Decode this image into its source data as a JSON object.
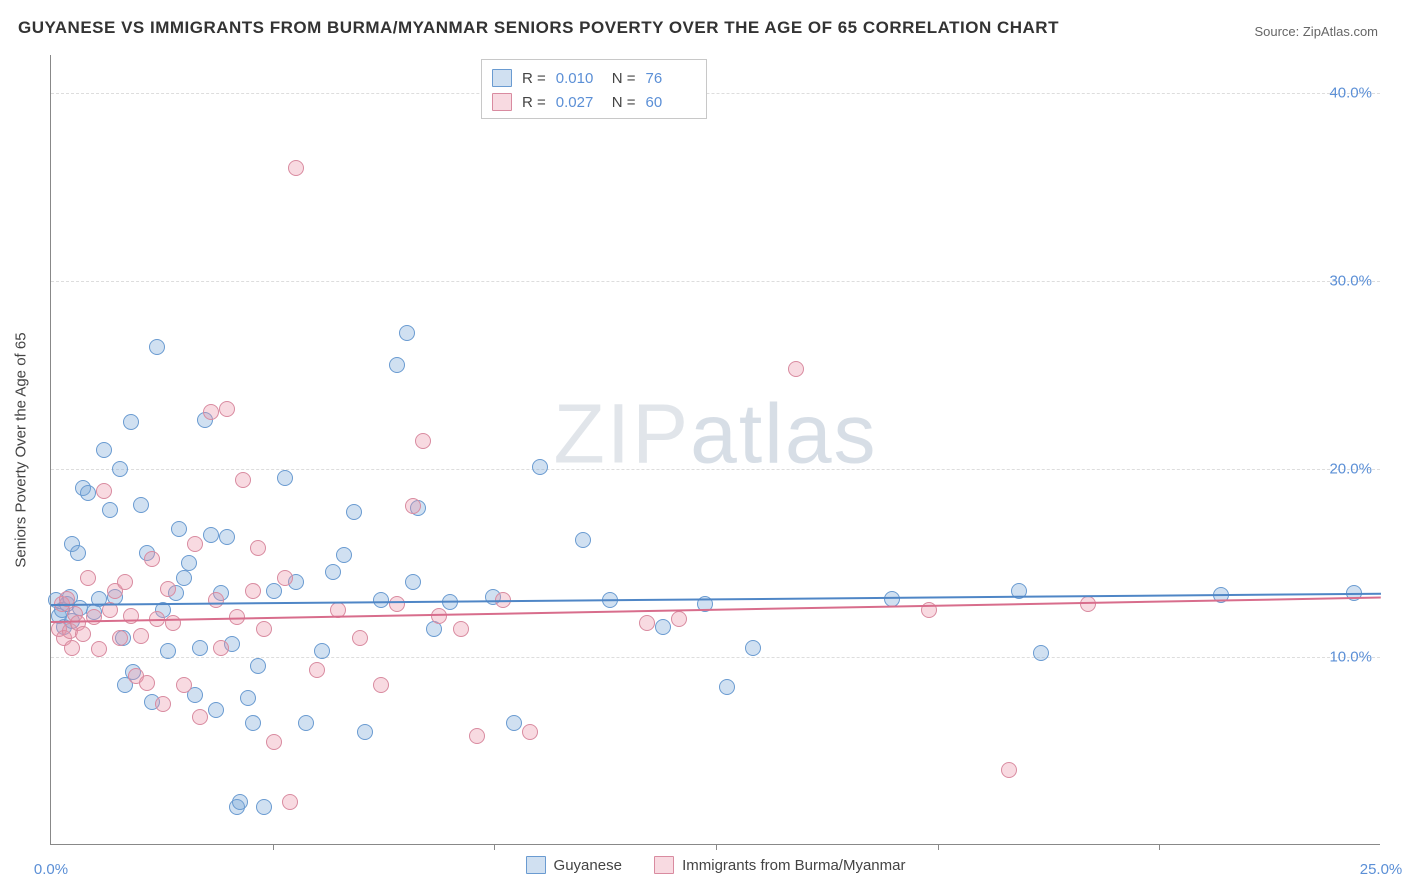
{
  "title": "GUYANESE VS IMMIGRANTS FROM BURMA/MYANMAR SENIORS POVERTY OVER THE AGE OF 65 CORRELATION CHART",
  "source": "Source: ZipAtlas.com",
  "watermark": "ZIPatlas",
  "ylabel": "Seniors Poverty Over the Age of 65",
  "chart": {
    "type": "scatter",
    "xlim": [
      0,
      25
    ],
    "ylim": [
      0,
      42
    ],
    "x_ticks": [
      0.0,
      25.0
    ],
    "x_tick_labels": [
      "0.0%",
      "25.0%"
    ],
    "x_minor_ticks": [
      4.17,
      8.33,
      12.5,
      16.67,
      20.83
    ],
    "y_ticks": [
      10.0,
      20.0,
      30.0,
      40.0
    ],
    "y_tick_labels": [
      "10.0%",
      "20.0%",
      "30.0%",
      "40.0%"
    ],
    "grid_color": "#dddddd",
    "background": "#ffffff",
    "axis_color": "#888888",
    "tick_color": "#5b8fd6",
    "series": [
      {
        "name": "Guyanese",
        "fill": "rgba(120,165,216,0.35)",
        "stroke": "#6a9bd1",
        "R": "0.010",
        "N": "76",
        "trend": {
          "y0": 12.8,
          "y1": 13.4,
          "color": "#4f86c6"
        },
        "points": [
          [
            0.1,
            13.0
          ],
          [
            0.15,
            12.2
          ],
          [
            0.2,
            12.5
          ],
          [
            0.25,
            11.6
          ],
          [
            0.3,
            12.8
          ],
          [
            0.35,
            13.2
          ],
          [
            0.4,
            11.9
          ],
          [
            0.4,
            16.0
          ],
          [
            0.5,
            15.5
          ],
          [
            0.55,
            12.6
          ],
          [
            0.6,
            19.0
          ],
          [
            0.7,
            18.7
          ],
          [
            0.8,
            12.4
          ],
          [
            0.9,
            13.1
          ],
          [
            1.0,
            21.0
          ],
          [
            1.1,
            17.8
          ],
          [
            1.2,
            13.2
          ],
          [
            1.3,
            20.0
          ],
          [
            1.35,
            11.0
          ],
          [
            1.4,
            8.5
          ],
          [
            1.5,
            22.5
          ],
          [
            1.55,
            9.2
          ],
          [
            1.7,
            18.1
          ],
          [
            1.8,
            15.5
          ],
          [
            1.9,
            7.6
          ],
          [
            2.0,
            26.5
          ],
          [
            2.1,
            12.5
          ],
          [
            2.2,
            10.3
          ],
          [
            2.35,
            13.4
          ],
          [
            2.4,
            16.8
          ],
          [
            2.5,
            14.2
          ],
          [
            2.6,
            15.0
          ],
          [
            2.7,
            8.0
          ],
          [
            2.8,
            10.5
          ],
          [
            2.9,
            22.6
          ],
          [
            3.0,
            16.5
          ],
          [
            3.1,
            7.2
          ],
          [
            3.2,
            13.4
          ],
          [
            3.3,
            16.4
          ],
          [
            3.4,
            10.7
          ],
          [
            3.5,
            2.0
          ],
          [
            3.55,
            2.3
          ],
          [
            3.7,
            7.8
          ],
          [
            3.8,
            6.5
          ],
          [
            3.9,
            9.5
          ],
          [
            4.0,
            2.0
          ],
          [
            4.2,
            13.5
          ],
          [
            4.4,
            19.5
          ],
          [
            4.6,
            14.0
          ],
          [
            4.8,
            6.5
          ],
          [
            5.1,
            10.3
          ],
          [
            5.3,
            14.5
          ],
          [
            5.5,
            15.4
          ],
          [
            5.7,
            17.7
          ],
          [
            5.9,
            6.0
          ],
          [
            6.2,
            13.0
          ],
          [
            6.5,
            25.5
          ],
          [
            6.7,
            27.2
          ],
          [
            6.8,
            14.0
          ],
          [
            6.9,
            17.9
          ],
          [
            7.2,
            11.5
          ],
          [
            7.5,
            12.9
          ],
          [
            8.3,
            13.2
          ],
          [
            8.7,
            6.5
          ],
          [
            9.2,
            20.1
          ],
          [
            10.0,
            16.2
          ],
          [
            10.5,
            13.0
          ],
          [
            11.5,
            11.6
          ],
          [
            12.3,
            12.8
          ],
          [
            12.7,
            8.4
          ],
          [
            13.2,
            10.5
          ],
          [
            15.8,
            13.1
          ],
          [
            18.2,
            13.5
          ],
          [
            18.6,
            10.2
          ],
          [
            22.0,
            13.3
          ],
          [
            24.5,
            13.4
          ]
        ]
      },
      {
        "name": "Immigrants from Burma/Myanmar",
        "fill": "rgba(235,150,170,0.35)",
        "stroke": "#d98ba0",
        "R": "0.027",
        "N": "60",
        "trend": {
          "y0": 11.9,
          "y1": 13.2,
          "color": "#d86d8c"
        },
        "points": [
          [
            0.15,
            11.5
          ],
          [
            0.2,
            12.8
          ],
          [
            0.25,
            11.0
          ],
          [
            0.3,
            13.1
          ],
          [
            0.35,
            11.4
          ],
          [
            0.4,
            10.5
          ],
          [
            0.45,
            12.3
          ],
          [
            0.5,
            11.8
          ],
          [
            0.6,
            11.2
          ],
          [
            0.7,
            14.2
          ],
          [
            0.8,
            12.1
          ],
          [
            0.9,
            10.4
          ],
          [
            1.0,
            18.8
          ],
          [
            1.1,
            12.5
          ],
          [
            1.2,
            13.5
          ],
          [
            1.3,
            11.0
          ],
          [
            1.4,
            14.0
          ],
          [
            1.5,
            12.2
          ],
          [
            1.6,
            9.0
          ],
          [
            1.7,
            11.1
          ],
          [
            1.8,
            8.6
          ],
          [
            1.9,
            15.2
          ],
          [
            2.0,
            12.0
          ],
          [
            2.1,
            7.5
          ],
          [
            2.2,
            13.6
          ],
          [
            2.3,
            11.8
          ],
          [
            2.5,
            8.5
          ],
          [
            2.7,
            16.0
          ],
          [
            2.8,
            6.8
          ],
          [
            3.0,
            23.0
          ],
          [
            3.1,
            13.0
          ],
          [
            3.2,
            10.5
          ],
          [
            3.3,
            23.2
          ],
          [
            3.5,
            12.1
          ],
          [
            3.6,
            19.4
          ],
          [
            3.8,
            13.5
          ],
          [
            3.9,
            15.8
          ],
          [
            4.0,
            11.5
          ],
          [
            4.2,
            5.5
          ],
          [
            4.4,
            14.2
          ],
          [
            4.5,
            2.3
          ],
          [
            4.6,
            36.0
          ],
          [
            5.0,
            9.3
          ],
          [
            5.4,
            12.5
          ],
          [
            5.8,
            11.0
          ],
          [
            6.2,
            8.5
          ],
          [
            6.5,
            12.8
          ],
          [
            6.8,
            18.0
          ],
          [
            7.0,
            21.5
          ],
          [
            7.3,
            12.2
          ],
          [
            7.7,
            11.5
          ],
          [
            8.0,
            5.8
          ],
          [
            8.5,
            13.0
          ],
          [
            9.0,
            6.0
          ],
          [
            11.2,
            11.8
          ],
          [
            11.8,
            12.0
          ],
          [
            14.0,
            25.3
          ],
          [
            16.5,
            12.5
          ],
          [
            18.0,
            4.0
          ],
          [
            19.5,
            12.8
          ]
        ]
      }
    ]
  },
  "legend": {
    "series1": "Guyanese",
    "series2": "Immigrants from Burma/Myanmar"
  }
}
